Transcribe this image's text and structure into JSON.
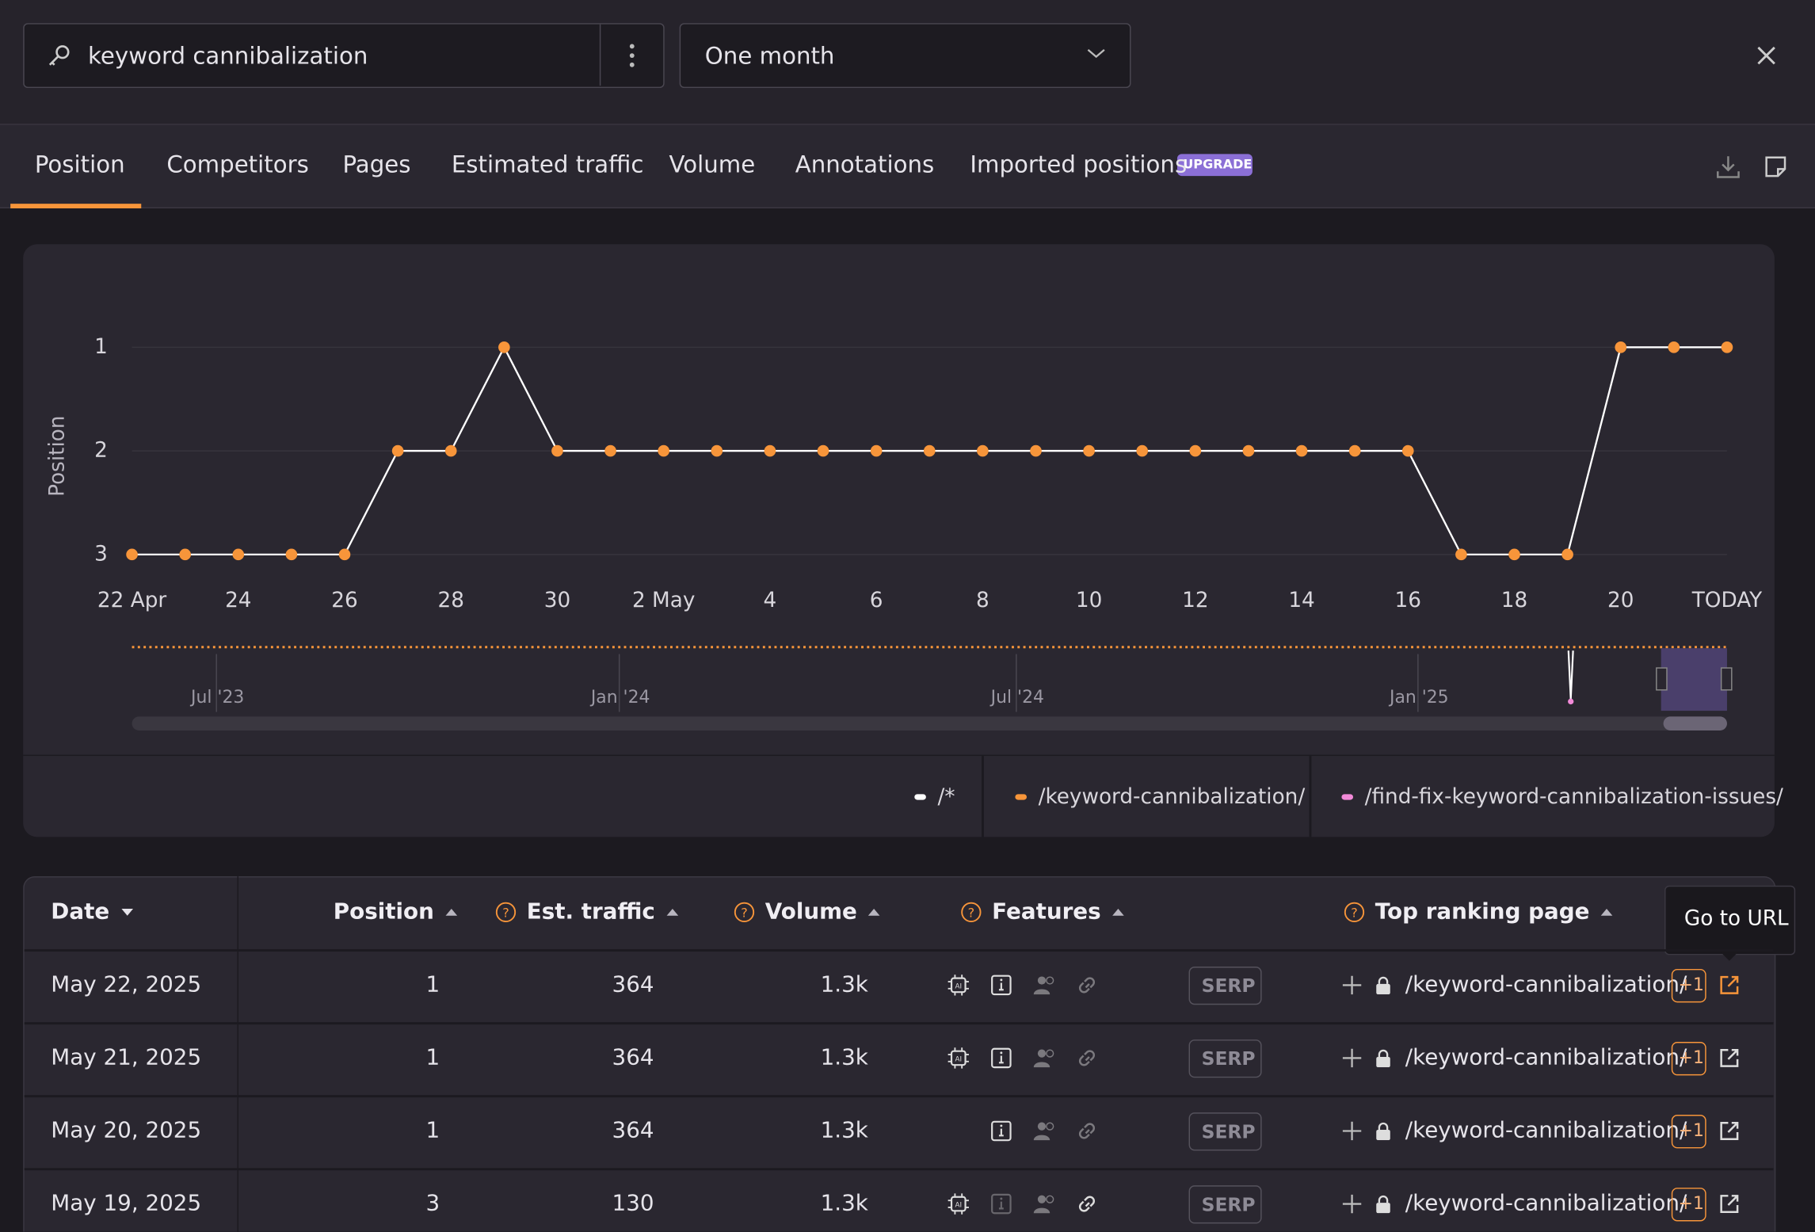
{
  "search": {
    "query": "keyword cannibalization",
    "period": "One month"
  },
  "tabs": [
    "Position",
    "Competitors",
    "Pages",
    "Estimated traffic",
    "Volume",
    "Annotations",
    "Imported positions"
  ],
  "badge": "UPGRADE",
  "chart_data": {
    "type": "line",
    "y_label": "Position",
    "categories": [
      "22 Apr",
      null,
      "24",
      null,
      "26",
      null,
      "28",
      null,
      "30",
      null,
      "2 May",
      null,
      "4",
      null,
      "6",
      null,
      "8",
      null,
      "10",
      null,
      "12",
      null,
      "14",
      null,
      "16",
      null,
      "18",
      null,
      "20",
      null,
      "TODAY"
    ],
    "series": [
      {
        "name": "/*",
        "color": "#ffffff"
      },
      {
        "name": "/keyword-cannibalization/",
        "color": "#f7953a",
        "line_color": "#ffffff",
        "values": [
          3,
          3,
          3,
          3,
          3,
          2,
          2,
          1,
          2,
          2,
          2,
          2,
          2,
          2,
          2,
          2,
          2,
          2,
          2,
          2,
          2,
          2,
          2,
          2,
          2,
          3,
          3,
          3,
          1,
          1,
          1
        ]
      },
      {
        "name": "/find-fix-keyword-cannibalization-issues/",
        "color": "#f28ad8"
      }
    ],
    "ylim": [
      3,
      1
    ],
    "yticks": [
      1,
      2,
      3
    ],
    "grid": true,
    "navigator_labels": [
      "Jul '23",
      "Jan '24",
      "Jul '24",
      "Jan '25"
    ]
  },
  "table": {
    "columns": [
      "Date",
      "Position",
      "Est. traffic",
      "Volume",
      "Features",
      "Top ranking page"
    ],
    "rows": [
      {
        "date": "May 22, 2025",
        "position": 1,
        "traffic": 364,
        "volume": "1.3k",
        "serp": "SERP",
        "page": "/keyword-cannibalization/",
        "extra": "+1"
      },
      {
        "date": "May 21, 2025",
        "position": 1,
        "traffic": 364,
        "volume": "1.3k",
        "serp": "SERP",
        "page": "/keyword-cannibalization/",
        "extra": "+1"
      },
      {
        "date": "May 20, 2025",
        "position": 1,
        "traffic": 364,
        "volume": "1.3k",
        "serp": "SERP",
        "page": "/keyword-cannibalization/",
        "extra": "+1"
      },
      {
        "date": "May 19, 2025",
        "position": 3,
        "traffic": 130,
        "volume": "1.3k",
        "serp": "SERP",
        "page": "/keyword-cannibalization/",
        "extra": "+1"
      }
    ]
  },
  "tooltip": "Go to URL"
}
